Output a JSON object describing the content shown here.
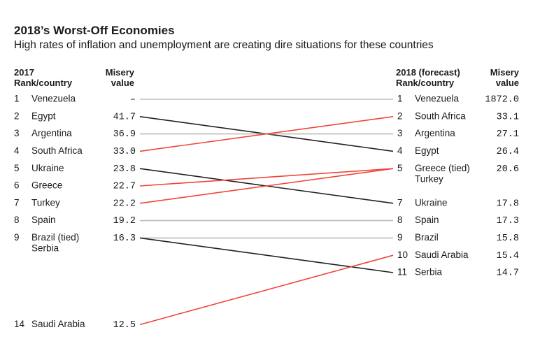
{
  "header": {
    "title": "2018’s Worst-Off Economies",
    "subtitle": "High rates of inflation and unemployment are creating dire situations for these countries",
    "left_col1_line1": "2017",
    "left_col1_line2": "Rank/country",
    "left_col2_line1": "Misery",
    "left_col2_line2": "value",
    "right_col1_line1": "2018 (forecast)",
    "right_col1_line2": "Rank/country",
    "right_col2_line1": "Misery",
    "right_col2_line2": "value"
  },
  "colors": {
    "worse": "#f0453a",
    "better": "#222222",
    "same": "#bdbdbd"
  },
  "chart_data": {
    "type": "slope",
    "title": "2018’s Worst-Off Economies",
    "subtitle": "High rates of inflation and unemployment are creating dire situations for these countries",
    "left": [
      {
        "rank": "1",
        "names": [
          "Venezuela"
        ],
        "value": "–"
      },
      {
        "rank": "2",
        "names": [
          "Egypt"
        ],
        "value": "41.7"
      },
      {
        "rank": "3",
        "names": [
          "Argentina"
        ],
        "value": "36.9"
      },
      {
        "rank": "4",
        "names": [
          "South Africa"
        ],
        "value": "33.0"
      },
      {
        "rank": "5",
        "names": [
          "Ukraine"
        ],
        "value": "23.8"
      },
      {
        "rank": "6",
        "names": [
          "Greece"
        ],
        "value": "22.7"
      },
      {
        "rank": "7",
        "names": [
          "Turkey"
        ],
        "value": "22.2"
      },
      {
        "rank": "8",
        "names": [
          "Spain"
        ],
        "value": "19.2"
      },
      {
        "rank": "9",
        "names": [
          "Brazil (tied)",
          "Serbia"
        ],
        "value": "16.3"
      },
      {
        "rank": "14",
        "names": [
          "Saudi Arabia"
        ],
        "value": "12.5"
      }
    ],
    "right": [
      {
        "rank": "1",
        "names": [
          "Venezuela"
        ],
        "value": "1872.0"
      },
      {
        "rank": "2",
        "names": [
          "South Africa"
        ],
        "value": "33.1"
      },
      {
        "rank": "3",
        "names": [
          "Argentina"
        ],
        "value": "27.1"
      },
      {
        "rank": "4",
        "names": [
          "Egypt"
        ],
        "value": "26.4"
      },
      {
        "rank": "5",
        "names": [
          "Greece (tied)",
          "Turkey"
        ],
        "value": "20.6"
      },
      {
        "rank": "7",
        "names": [
          "Ukraine"
        ],
        "value": "17.8"
      },
      {
        "rank": "8",
        "names": [
          "Spain"
        ],
        "value": "17.3"
      },
      {
        "rank": "9",
        "names": [
          "Brazil"
        ],
        "value": "15.8"
      },
      {
        "rank": "10",
        "names": [
          "Saudi Arabia"
        ],
        "value": "15.4"
      },
      {
        "rank": "11",
        "names": [
          "Serbia"
        ],
        "value": "14.7"
      }
    ],
    "links": [
      {
        "country": "Venezuela",
        "from_rank": 1,
        "to_rank": 1,
        "trend": "same"
      },
      {
        "country": "Egypt",
        "from_rank": 2,
        "to_rank": 4,
        "trend": "better"
      },
      {
        "country": "Argentina",
        "from_rank": 3,
        "to_rank": 3,
        "trend": "same"
      },
      {
        "country": "South Africa",
        "from_rank": 4,
        "to_rank": 2,
        "trend": "worse"
      },
      {
        "country": "Ukraine",
        "from_rank": 5,
        "to_rank": 7,
        "trend": "better"
      },
      {
        "country": "Greece",
        "from_rank": 6,
        "to_rank": 5,
        "trend": "worse"
      },
      {
        "country": "Turkey",
        "from_rank": 7,
        "to_rank": 5,
        "trend": "worse"
      },
      {
        "country": "Spain",
        "from_rank": 8,
        "to_rank": 8,
        "trend": "same"
      },
      {
        "country": "Brazil",
        "from_rank": 9,
        "to_rank": 9,
        "trend": "same"
      },
      {
        "country": "Serbia",
        "from_rank": 9,
        "to_rank": 11,
        "trend": "better"
      },
      {
        "country": "Saudi Arabia",
        "from_rank": 14,
        "to_rank": 10,
        "trend": "worse"
      }
    ]
  }
}
